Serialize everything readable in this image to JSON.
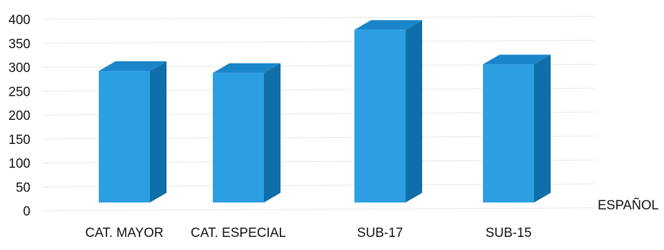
{
  "chart_data": {
    "type": "bar",
    "style": "3d-column",
    "categories": [
      "CAT. MAYOR",
      "CAT. ESPECIAL",
      "SUB-17",
      "SUB-15"
    ],
    "series": [
      {
        "name": "ESPAÑOL",
        "values": [
          292,
          288,
          378,
          306
        ]
      }
    ],
    "title": "",
    "xlabel": "",
    "ylabel": "",
    "ylim": [
      0,
      400
    ],
    "yticks": [
      0,
      50,
      100,
      150,
      200,
      250,
      300,
      350,
      400
    ],
    "grid": true,
    "legend": "right",
    "colors": {
      "front": "#2c9fe3",
      "side": "#106ea9",
      "top": "#1a85c9"
    }
  }
}
